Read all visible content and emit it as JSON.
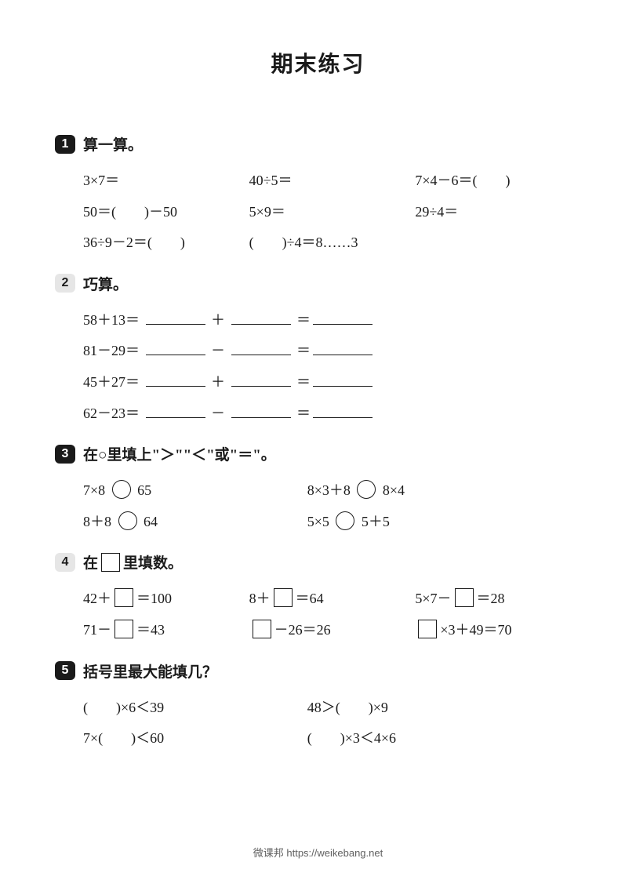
{
  "page": {
    "title": "期末练习",
    "footer": "微课邦 https://weikebang.net",
    "background_color": "#ffffff",
    "text_color": "#1a1a1a",
    "badge_dark_bg": "#1a1a1a",
    "badge_light_bg": "#e6e6e6",
    "title_fontsize": 28,
    "body_fontsize": 18,
    "header_fontsize": 19
  },
  "sections": {
    "s1": {
      "num": "1",
      "badge_style": "dark",
      "title": "算一算。",
      "rows": [
        [
          "3×7＝",
          "40÷5＝",
          "7×4－6＝(　　)"
        ],
        [
          "50＝(　　)－50",
          "5×9＝",
          "29÷4＝"
        ],
        [
          "36÷9－2＝(　　)",
          "(　　)÷4＝8……3",
          ""
        ]
      ]
    },
    "s2": {
      "num": "2",
      "badge_style": "light",
      "title": "巧算。",
      "lines": [
        {
          "lhs": "58＋13＝",
          "op": "＋"
        },
        {
          "lhs": "81－29＝",
          "op": "－"
        },
        {
          "lhs": "45＋27＝",
          "op": "＋"
        },
        {
          "lhs": "62－23＝",
          "op": "－"
        }
      ]
    },
    "s3": {
      "num": "3",
      "badge_style": "dark",
      "title": "在○里填上\"＞\"\"＜\"或\"＝\"。",
      "rows": [
        {
          "l_before": "7×8",
          "l_after": "65",
          "r_before": "8×3＋8",
          "r_after": "8×4"
        },
        {
          "l_before": "8＋8",
          "l_after": "64",
          "r_before": "5×5",
          "r_after": "5＋5"
        }
      ]
    },
    "s4": {
      "num": "4",
      "badge_style": "light",
      "title_before": "在",
      "title_after": "里填数。",
      "rows": [
        [
          {
            "pre": "42＋",
            "post": "＝100"
          },
          {
            "pre": "8＋",
            "post": "＝64"
          },
          {
            "pre": "5×7－",
            "post": "＝28"
          }
        ],
        [
          {
            "pre": "71－",
            "post": "＝43"
          },
          {
            "pre": "",
            "post": "－26＝26"
          },
          {
            "pre": "",
            "post": "×3＋49＝70"
          }
        ]
      ]
    },
    "s5": {
      "num": "5",
      "badge_style": "dark",
      "title": "括号里最大能填几？",
      "rows": [
        [
          "(　　)×6＜39",
          "48＞(　　)×9"
        ],
        [
          "7×(　　)＜60",
          "(　　)×3＜4×6"
        ]
      ]
    }
  }
}
